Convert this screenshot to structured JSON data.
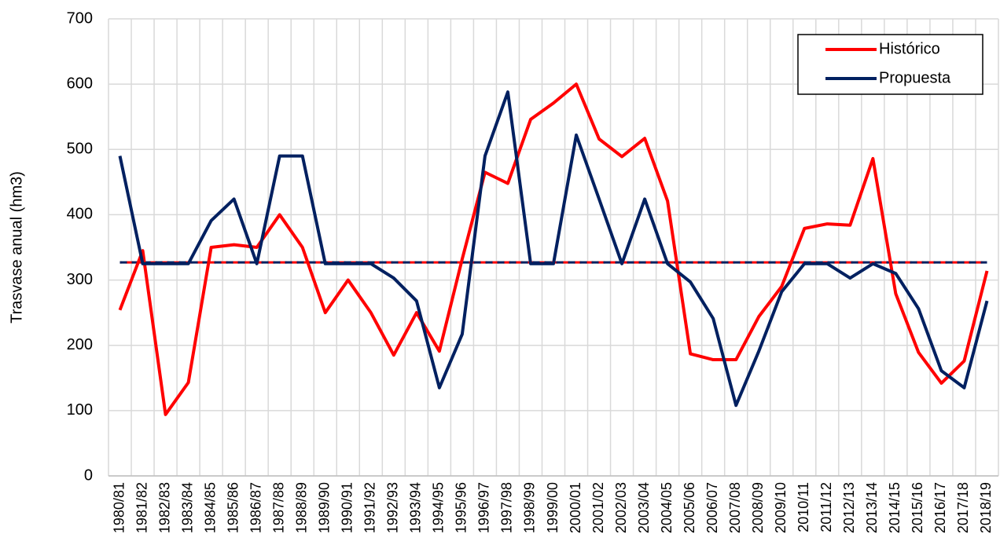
{
  "chart_data": {
    "type": "line",
    "y_label": "Trasvase anual (hm3)",
    "categories": [
      "1980/81",
      "1981/82",
      "1982/83",
      "1983/84",
      "1984/85",
      "1985/86",
      "1986/87",
      "1987/88",
      "1988/89",
      "1989/90",
      "1990/91",
      "1991/92",
      "1992/93",
      "1993/94",
      "1994/95",
      "1995/96",
      "1996/97",
      "1997/98",
      "1998/99",
      "1999/00",
      "2000/01",
      "2001/02",
      "2002/03",
      "2003/04",
      "2004/05",
      "2005/06",
      "2006/07",
      "2007/08",
      "2008/09",
      "2009/10",
      "2010/11",
      "2011/12",
      "2012/13",
      "2013/14",
      "2014/15",
      "2015/16",
      "2016/17",
      "2017/18",
      "2018/19"
    ],
    "series": [
      {
        "name": "Histórico",
        "color": "#ff0000",
        "values": [
          254,
          345,
          94,
          143,
          350,
          354,
          350,
          400,
          350,
          250,
          300,
          250,
          185,
          250,
          191,
          332,
          465,
          448,
          546,
          571,
          600,
          516,
          489,
          517,
          421,
          187,
          178,
          178,
          244,
          290,
          379,
          386,
          384,
          486,
          279,
          189,
          142,
          176,
          314
        ]
      },
      {
        "name": "Propuesta",
        "color": "#002060",
        "values": [
          490,
          325,
          325,
          325,
          391,
          424,
          325,
          490,
          490,
          325,
          325,
          325,
          303,
          268,
          135,
          217,
          490,
          588,
          325,
          325,
          522,
          424,
          325,
          424,
          325,
          297,
          241,
          108,
          191,
          282,
          325,
          325,
          303,
          325,
          310,
          256,
          161,
          135,
          268
        ]
      }
    ],
    "hlines": [
      {
        "value": 327,
        "color": "#ff0000"
      },
      {
        "value": 327,
        "color": "#002060"
      }
    ],
    "ylim": [
      0,
      700
    ],
    "yticks": [
      0,
      100,
      200,
      300,
      400,
      500,
      600,
      700
    ],
    "grid": true,
    "legend": "top-right"
  }
}
